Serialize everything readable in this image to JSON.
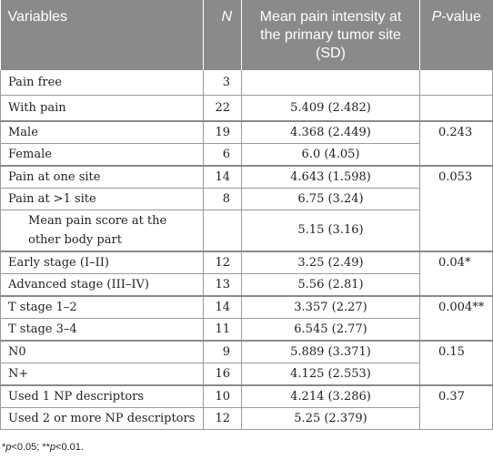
{
  "table": {
    "headers": {
      "variables": "Variables",
      "n": "N",
      "mean": "Mean pain intensity at the primary tumor site (SD)",
      "p_prefix": "P",
      "p_suffix": "-value"
    },
    "rows": [
      {
        "variable": "Pain free",
        "n": "3",
        "mean": "",
        "p": ""
      },
      {
        "variable": "With pain",
        "n": "22",
        "mean": "5.409 (2.482)",
        "p": ""
      },
      {
        "variable": "Male",
        "n": "19",
        "mean": "4.368 (2.449)",
        "p": "0.243"
      },
      {
        "variable": "Female",
        "n": "6",
        "mean": "6.0 (4.05)"
      },
      {
        "variable": "Pain at one site",
        "n": "14",
        "mean": "4.643 (1.598)",
        "p": "0.053"
      },
      {
        "variable": "Pain at >1 site",
        "n": "8",
        "mean": "6.75 (3.24)"
      },
      {
        "variable": "Mean pain score at the other body part",
        "n": "",
        "mean": "5.15 (3.16)"
      },
      {
        "variable": "Early stage (I–II)",
        "n": "12",
        "mean": "3.25 (2.49)",
        "p": "0.04*"
      },
      {
        "variable": "Advanced stage (III–IV)",
        "n": "13",
        "mean": "5.56 (2.81)"
      },
      {
        "variable": "T stage 1–2",
        "n": "14",
        "mean": "3.357 (2.27)",
        "p": "0.004**"
      },
      {
        "variable": "T stage 3–4",
        "n": "11",
        "mean": "6.545 (2.77)"
      },
      {
        "variable": "N0",
        "n": "9",
        "mean": "5.889 (3.371)",
        "p": "0.15"
      },
      {
        "variable": "N+",
        "n": "16",
        "mean": "4.125 (2.553)"
      },
      {
        "variable": "Used 1 NP descriptors",
        "n": "10",
        "mean": "4.214 (3.286)",
        "p": "0.37"
      },
      {
        "variable": "Used 2 or more NP descriptors",
        "n": "12",
        "mean": "5.25 (2.379)"
      }
    ]
  },
  "footnote": {
    "star1": "*",
    "p1": "p",
    "t1": "<0.05; ",
    "star2": "**",
    "p2": "p",
    "t2": "<0.01."
  }
}
